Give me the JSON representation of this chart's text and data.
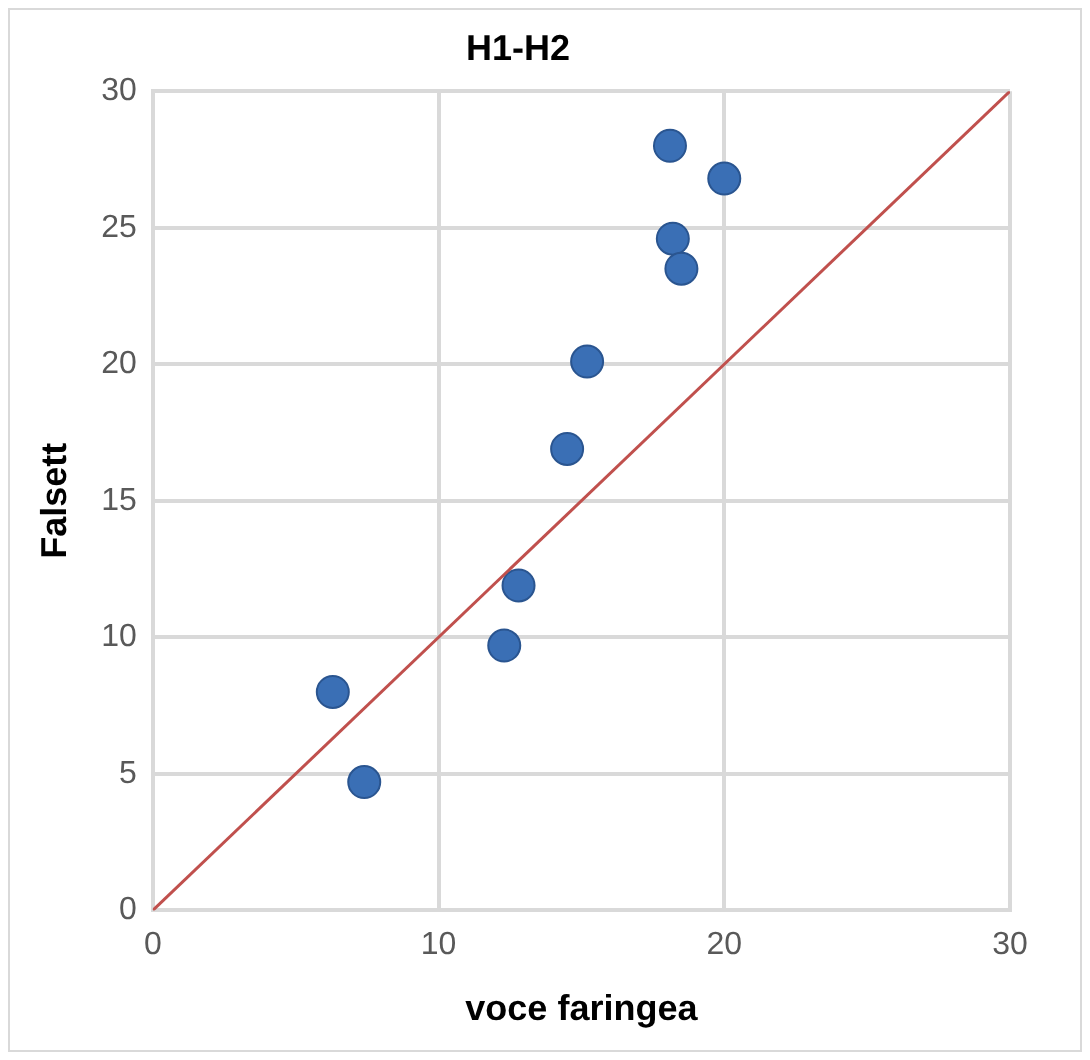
{
  "chart_data": {
    "type": "scatter",
    "title": "H1-H2",
    "xlabel": "voce faringea",
    "ylabel": "Falsett",
    "xlim": [
      0,
      30
    ],
    "xticks": [
      0,
      10,
      20,
      30
    ],
    "ylim": [
      0,
      30
    ],
    "yticks": [
      0,
      5,
      10,
      15,
      20,
      25,
      30
    ],
    "grid": true,
    "legend": false,
    "marker": "circle",
    "series": [
      {
        "color": "#3a6fb5",
        "x": [
          18.1,
          20.0,
          18.2,
          18.5,
          15.2,
          14.5,
          12.8,
          12.3,
          6.3,
          7.4
        ],
        "values": [
          28.0,
          26.8,
          24.6,
          23.5,
          20.1,
          16.9,
          11.9,
          9.7,
          8.0,
          4.7
        ]
      },
      {
        "type": "line",
        "color": "#c0504d",
        "x": [
          0,
          30
        ],
        "values": [
          0,
          30
        ],
        "marker": "none"
      }
    ]
  }
}
